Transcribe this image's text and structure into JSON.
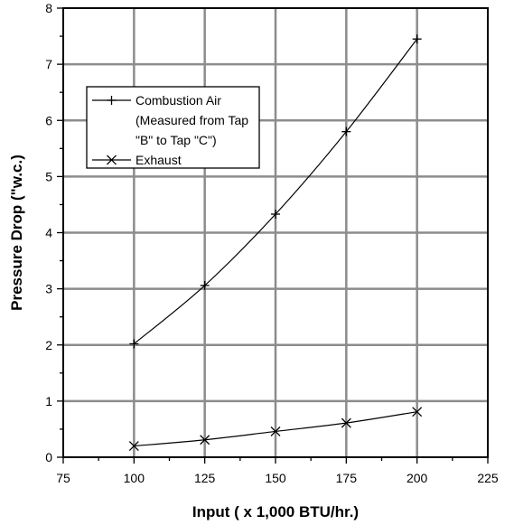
{
  "chart_data": {
    "type": "line",
    "xlabel": "Input ( x 1,000 BTU/hr.)",
    "ylabel": "Pressure Drop (\"w.c.)",
    "xlim": [
      75,
      225
    ],
    "ylim": [
      0,
      8
    ],
    "xticks": [
      "75",
      "100",
      "125",
      "150",
      "175",
      "200",
      "225"
    ],
    "yticks": [
      "0",
      "1",
      "2",
      "3",
      "4",
      "5",
      "6",
      "7",
      "8"
    ],
    "grid": true,
    "legend_position": "upper-left",
    "series": [
      {
        "name": "Combustion Air",
        "name_lines": [
          "Combustion Air",
          "(Measured from Tap",
          "\"B\" to Tap \"C\")"
        ],
        "marker": "plus",
        "x": [
          100,
          125,
          150,
          175,
          200
        ],
        "y": [
          2.02,
          3.06,
          4.33,
          5.8,
          7.45
        ]
      },
      {
        "name": "Exhaust",
        "name_lines": [
          "Exhaust"
        ],
        "marker": "x",
        "x": [
          100,
          125,
          150,
          175,
          200
        ],
        "y": [
          0.2,
          0.31,
          0.46,
          0.61,
          0.81
        ]
      }
    ]
  }
}
